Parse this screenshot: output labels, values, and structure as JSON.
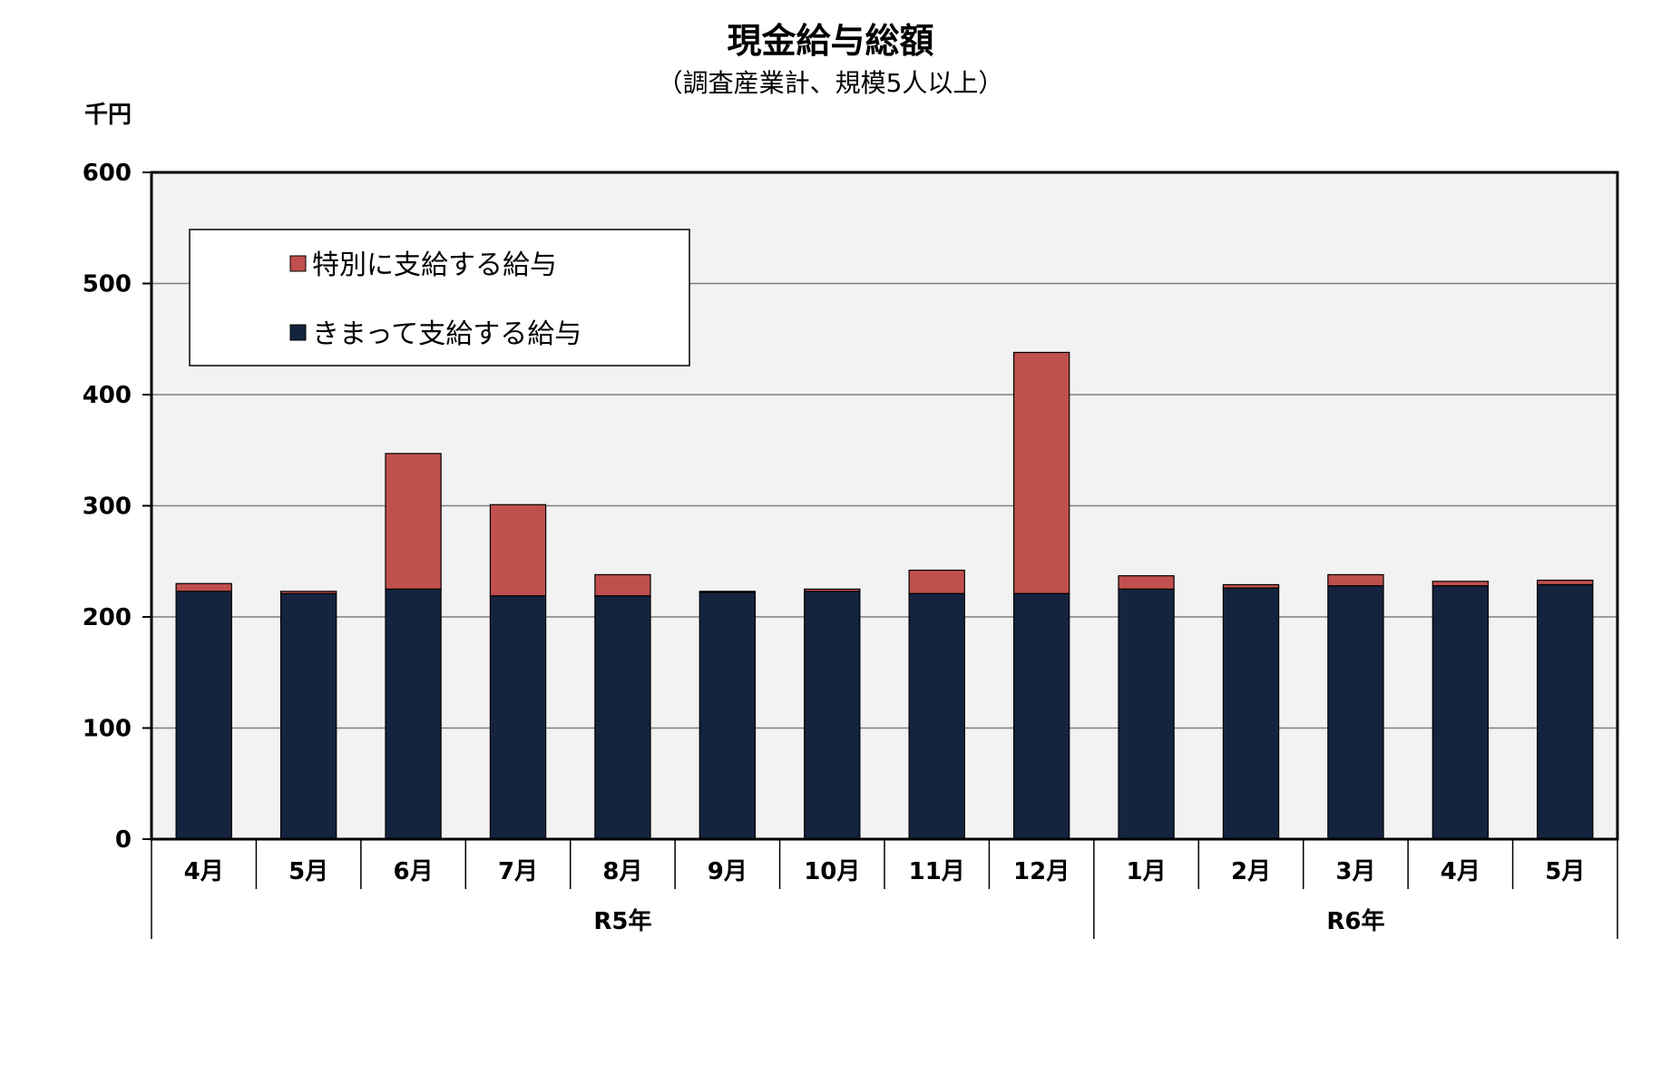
{
  "chart_data": {
    "type": "bar",
    "stacked": true,
    "title": "現金給与総額",
    "subtitle": "（調査産業計、規模5人以上）",
    "ylabel": "千円",
    "ylim": [
      0,
      600
    ],
    "yticks": [
      0,
      100,
      200,
      300,
      400,
      500,
      600
    ],
    "grid": true,
    "legend_position": "top-left",
    "categories": [
      "4月",
      "5月",
      "6月",
      "7月",
      "8月",
      "9月",
      "10月",
      "11月",
      "12月",
      "1月",
      "2月",
      "3月",
      "4月",
      "5月"
    ],
    "groups": [
      {
        "label": "R5年",
        "count": 9
      },
      {
        "label": "R6年",
        "count": 5
      }
    ],
    "series": [
      {
        "name": "きまって支給する給与",
        "color": "#14243f",
        "values": [
          223,
          221,
          225,
          219,
          219,
          222,
          223,
          221,
          221,
          225,
          226,
          228,
          228,
          229
        ]
      },
      {
        "name": "特別に支給する給与",
        "color": "#c0504d",
        "values": [
          7,
          2,
          122,
          82,
          19,
          1,
          2,
          21,
          217,
          12,
          3,
          10,
          4,
          4
        ]
      }
    ],
    "legend_order": [
      "特別に支給する給与",
      "きまって支給する給与"
    ],
    "plot_background": "#f2f2f2"
  }
}
